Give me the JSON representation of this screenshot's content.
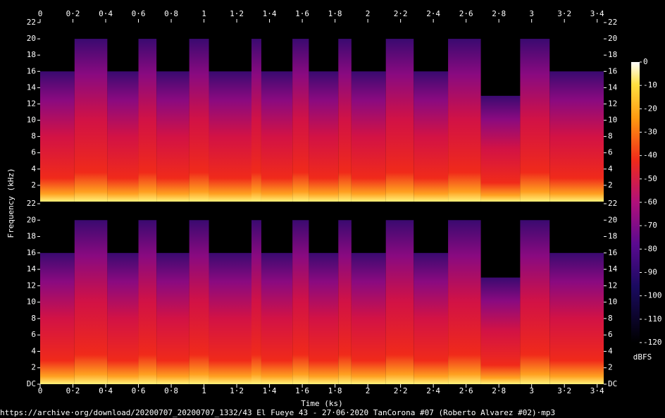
{
  "chart_data": {
    "type": "spectrogram",
    "xlabel": "Time (ks)",
    "ylabel": "Frequency (kHz)",
    "footer": "https://archive·org/download/20200707_20200707_1332/43 El Fueye 43 - 27·06·2020 TanCorona #07 (Roberto Alvarez #02)·mp3",
    "xlim": [
      0,
      3.44
    ],
    "xticks": [
      0,
      {
        "value": 0.2,
        "label": "0·2"
      },
      {
        "value": 0.4,
        "label": "0·4"
      },
      {
        "value": 0.6,
        "label": "0·6"
      },
      {
        "value": 0.8,
        "label": "0·8"
      },
      1,
      {
        "value": 1.2,
        "label": "1·2"
      },
      {
        "value": 1.4,
        "label": "1·4"
      },
      {
        "value": 1.6,
        "label": "1·6"
      },
      {
        "value": 1.8,
        "label": "1·8"
      },
      2,
      {
        "value": 2.2,
        "label": "2·2"
      },
      {
        "value": 2.4,
        "label": "2·4"
      },
      {
        "value": 2.6,
        "label": "2·6"
      },
      {
        "value": 2.8,
        "label": "2·8"
      },
      3,
      {
        "value": 3.2,
        "label": "3·2"
      },
      {
        "value": 3.4,
        "label": "3·4"
      }
    ],
    "bins": [
      0,
      0.21,
      0.41,
      0.6,
      0.71,
      0.91,
      1.03,
      1.29,
      1.35,
      1.54,
      1.64,
      1.82,
      1.9,
      2.11,
      2.28,
      2.49,
      2.69,
      2.93,
      3.11,
      3.44
    ],
    "channels": [
      {
        "ylim": [
          0,
          22
        ],
        "yticks": [
          2,
          4,
          6,
          8,
          10,
          12,
          14,
          16,
          18,
          20,
          22
        ],
        "values": [
          16,
          20,
          16,
          20,
          16,
          20,
          16,
          20,
          16,
          20,
          16,
          20,
          16,
          20,
          16,
          20,
          13,
          20,
          16
        ]
      },
      {
        "ylim": [
          0,
          22
        ],
        "yticks": [
          {
            "value": 0,
            "label": "DC"
          },
          2,
          4,
          6,
          8,
          10,
          12,
          14,
          16,
          18,
          20,
          22
        ],
        "values": [
          16,
          20,
          16,
          20,
          16,
          20,
          16,
          20,
          16,
          20,
          16,
          20,
          16,
          20,
          16,
          20,
          13,
          20,
          16
        ]
      }
    ],
    "colorbar": {
      "lim": [
        -120,
        0
      ],
      "ticks": [
        0,
        -10,
        -20,
        -30,
        -40,
        -50,
        -60,
        -70,
        -80,
        -90,
        -100,
        -110,
        -120
      ],
      "label": "dBFS"
    }
  }
}
